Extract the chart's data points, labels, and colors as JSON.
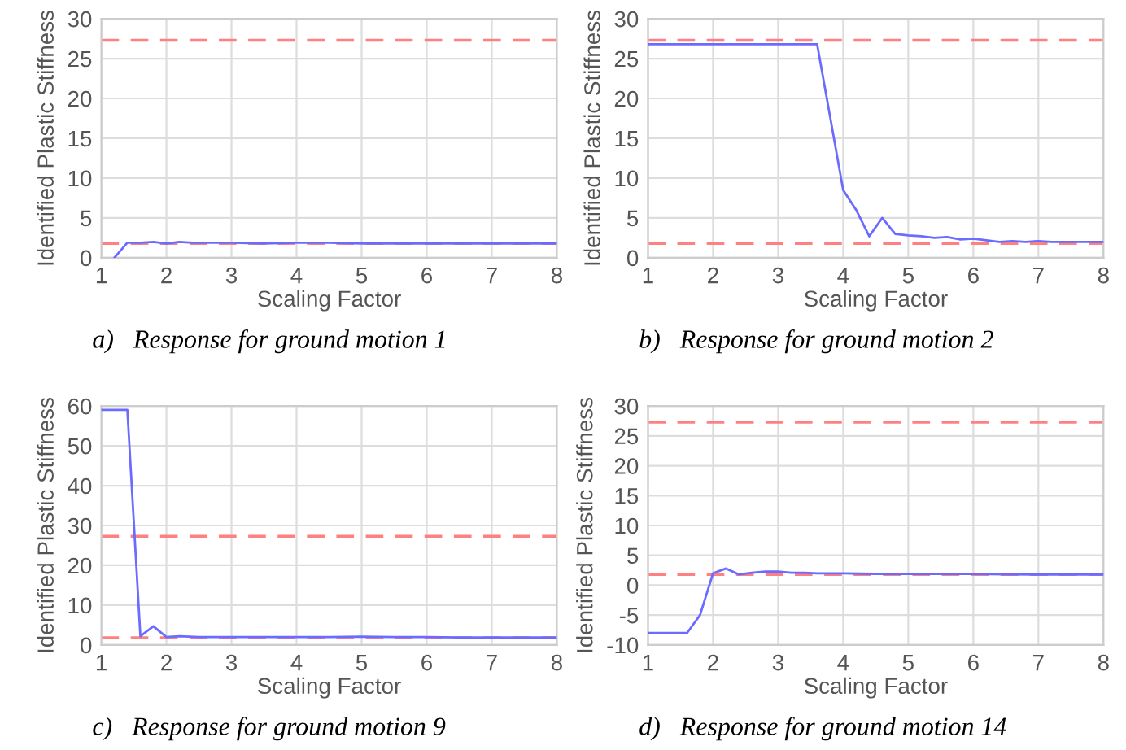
{
  "chart_data": [
    {
      "type": "line",
      "title": "a)   Response for ground motion 1",
      "xlabel": "Scaling Factor",
      "ylabel": "Identified Plastic Stiffness",
      "xlim": [
        1,
        8
      ],
      "xticks": [
        1,
        2,
        3,
        4,
        5,
        6,
        7,
        8
      ],
      "ylim": [
        0,
        30
      ],
      "yticks": [
        0,
        5,
        10,
        15,
        20,
        25,
        30
      ],
      "grid": true,
      "legend": false,
      "series": [
        {
          "color": "#6b6bff",
          "x": [
            1.2,
            1.4,
            1.6,
            1.8,
            2.0,
            2.2,
            2.4,
            2.6,
            2.8,
            3.0,
            3.5,
            4.0,
            4.5,
            5.0,
            5.5,
            6.0,
            6.5,
            7.0,
            7.5,
            8.0
          ],
          "values": [
            0,
            1.9,
            1.9,
            2.0,
            1.8,
            2.0,
            1.9,
            1.9,
            1.9,
            1.9,
            1.8,
            1.9,
            1.9,
            1.8,
            1.8,
            1.8,
            1.8,
            1.8,
            1.8,
            1.8
          ]
        }
      ],
      "ref_lines": [
        {
          "axis": "y",
          "value": 27.3,
          "color": "#ff8080",
          "line_style": "dashed"
        },
        {
          "axis": "y",
          "value": 1.8,
          "color": "#ff8080",
          "line_style": "dashed"
        }
      ]
    },
    {
      "type": "line",
      "title": "b)   Response for ground motion 2",
      "xlabel": "Scaling Factor",
      "ylabel": "Identified Plastic Stiffness",
      "xlim": [
        1,
        8
      ],
      "xticks": [
        1,
        2,
        3,
        4,
        5,
        6,
        7,
        8
      ],
      "ylim": [
        0,
        30
      ],
      "yticks": [
        0,
        5,
        10,
        15,
        20,
        25,
        30
      ],
      "grid": true,
      "legend": false,
      "series": [
        {
          "color": "#6b6bff",
          "x": [
            1.0,
            2.0,
            3.0,
            3.6,
            4.0,
            4.2,
            4.4,
            4.6,
            4.8,
            5.0,
            5.2,
            5.4,
            5.6,
            5.8,
            6.0,
            6.2,
            6.4,
            6.6,
            6.8,
            7.0,
            7.2,
            7.6,
            8.0
          ],
          "values": [
            26.8,
            26.8,
            26.8,
            26.8,
            8.5,
            6.0,
            2.7,
            5.0,
            3.0,
            2.8,
            2.7,
            2.5,
            2.6,
            2.3,
            2.4,
            2.2,
            2.0,
            2.1,
            2.0,
            2.1,
            2.0,
            2.0,
            2.0
          ]
        }
      ],
      "ref_lines": [
        {
          "axis": "y",
          "value": 27.3,
          "color": "#ff8080",
          "line_style": "dashed"
        },
        {
          "axis": "y",
          "value": 1.8,
          "color": "#ff8080",
          "line_style": "dashed"
        }
      ]
    },
    {
      "type": "line",
      "title": "c)   Response for ground motion 9",
      "xlabel": "Scaling Factor",
      "ylabel": "Identified Plastic Stiffness",
      "xlim": [
        1,
        8
      ],
      "xticks": [
        1,
        2,
        3,
        4,
        5,
        6,
        7,
        8
      ],
      "ylim": [
        0,
        60
      ],
      "yticks": [
        0,
        10,
        20,
        30,
        40,
        50,
        60
      ],
      "grid": true,
      "legend": false,
      "series": [
        {
          "color": "#6b6bff",
          "x": [
            1.0,
            1.2,
            1.4,
            1.6,
            1.8,
            2.0,
            2.2,
            2.5,
            3.0,
            3.5,
            4.0,
            4.5,
            5.0,
            5.5,
            6.0,
            6.5,
            7.0,
            7.5,
            8.0
          ],
          "values": [
            59,
            59,
            59,
            2.2,
            4.7,
            2.0,
            2.2,
            2.0,
            2.0,
            2.0,
            2.0,
            2.0,
            2.1,
            2.0,
            2.0,
            1.9,
            1.9,
            1.9,
            1.9
          ]
        }
      ],
      "ref_lines": [
        {
          "axis": "y",
          "value": 27.3,
          "color": "#ff8080",
          "line_style": "dashed"
        },
        {
          "axis": "y",
          "value": 1.8,
          "color": "#ff8080",
          "line_style": "dashed"
        }
      ]
    },
    {
      "type": "line",
      "title": "d)   Response for ground motion 14",
      "xlabel": "Scaling Factor",
      "ylabel": "Identified Plastic Stiffness",
      "xlim": [
        1,
        8
      ],
      "xticks": [
        1,
        2,
        3,
        4,
        5,
        6,
        7,
        8
      ],
      "ylim": [
        -10,
        30
      ],
      "yticks": [
        -10,
        -5,
        0,
        5,
        10,
        15,
        20,
        25,
        30
      ],
      "grid": true,
      "legend": false,
      "series": [
        {
          "color": "#6b6bff",
          "x": [
            1.0,
            1.2,
            1.4,
            1.6,
            1.8,
            2.0,
            2.2,
            2.4,
            2.6,
            2.8,
            3.0,
            3.2,
            3.4,
            3.6,
            4.0,
            4.5,
            5.0,
            5.5,
            6.0,
            6.5,
            7.0,
            7.5,
            8.0
          ],
          "values": [
            -8,
            -8,
            -8,
            -8,
            -5,
            2.0,
            2.8,
            1.8,
            2.1,
            2.3,
            2.3,
            2.1,
            2.1,
            2.0,
            2.0,
            1.9,
            1.9,
            1.9,
            1.9,
            1.8,
            1.8,
            1.8,
            1.8
          ]
        }
      ],
      "ref_lines": [
        {
          "axis": "y",
          "value": 27.3,
          "color": "#ff8080",
          "line_style": "dashed"
        },
        {
          "axis": "y",
          "value": 1.8,
          "color": "#ff8080",
          "line_style": "dashed"
        }
      ]
    }
  ]
}
